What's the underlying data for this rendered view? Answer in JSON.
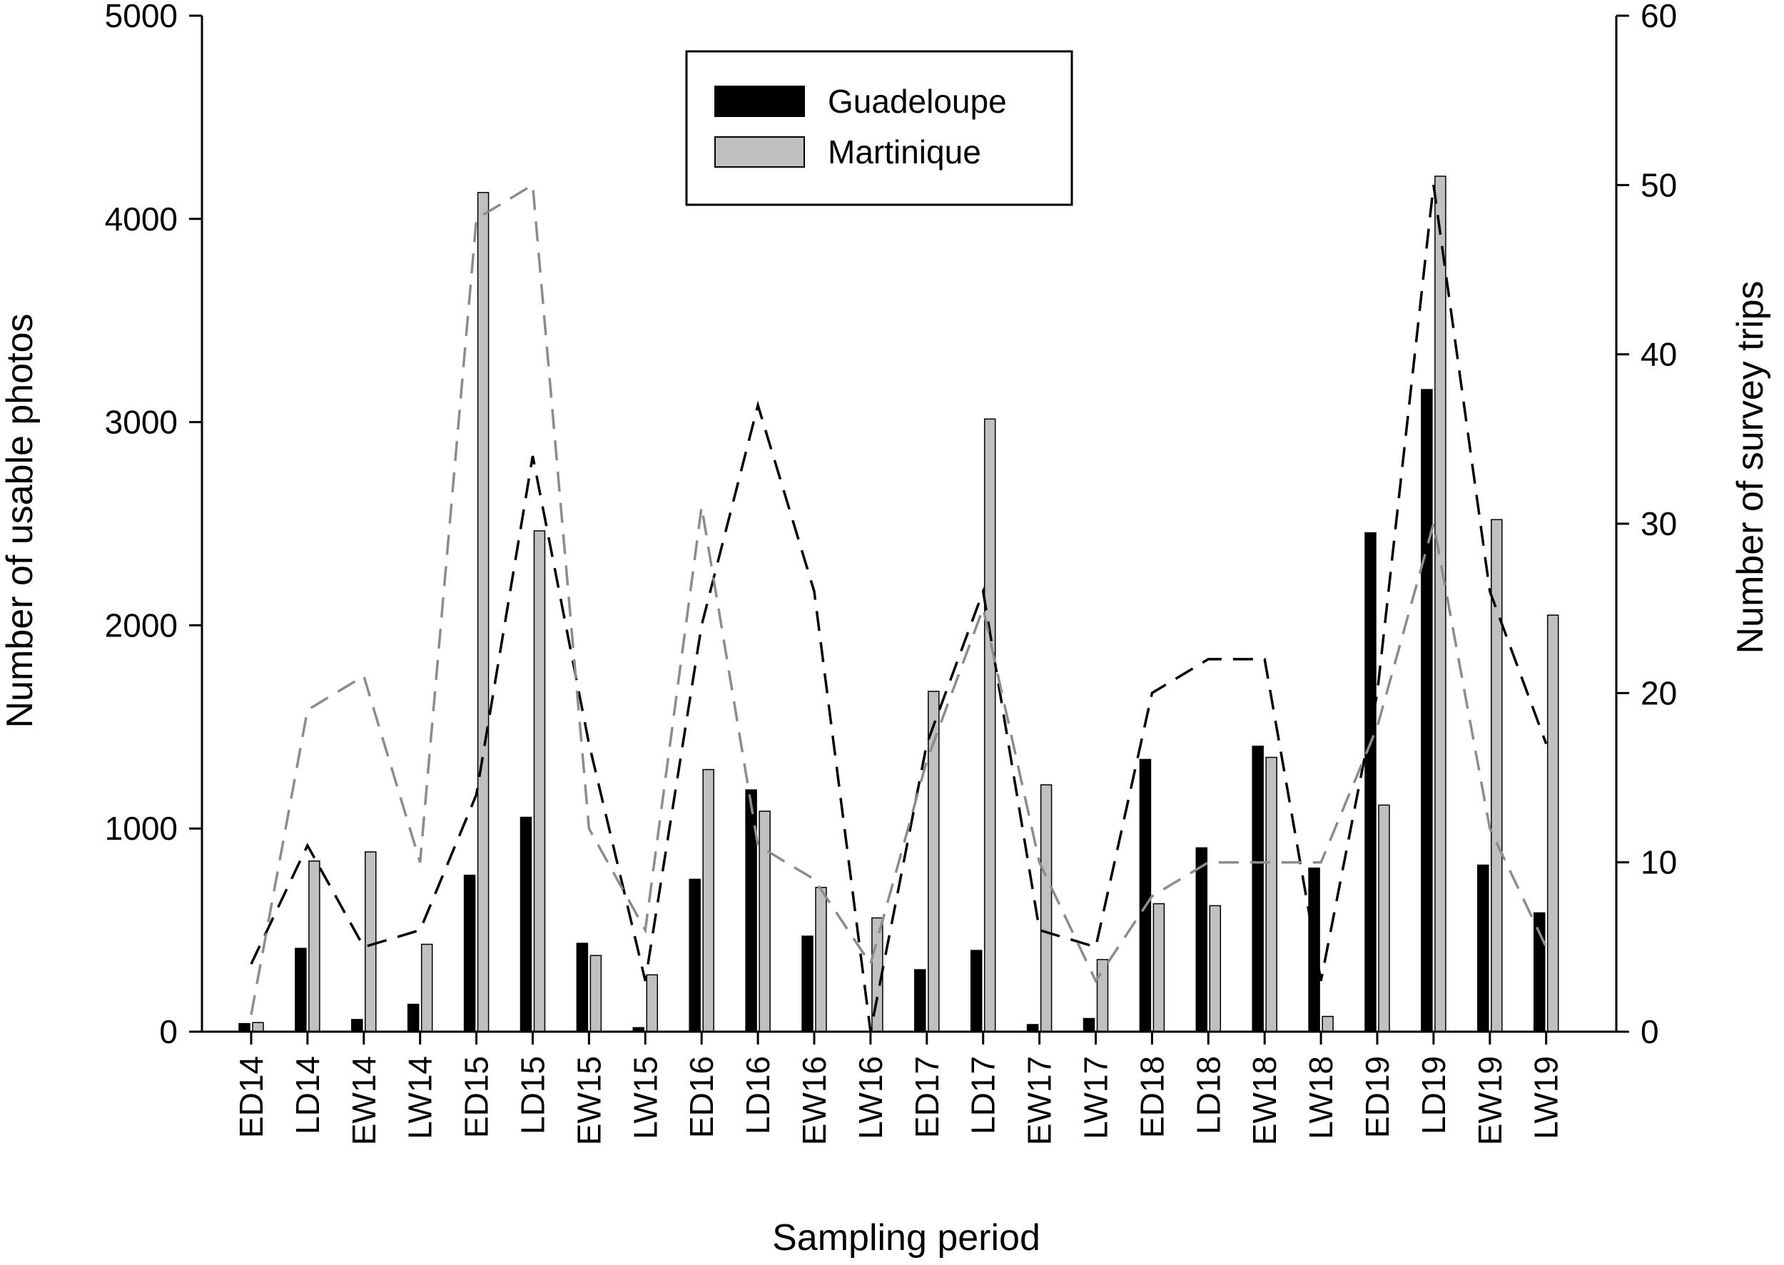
{
  "chart_data": {
    "type": "bar",
    "xlabel": "Sampling period",
    "ylabel": "Number of usable photos",
    "y2label": "Number of survey trips",
    "ylim": [
      0,
      5000
    ],
    "y2lim": [
      0,
      60
    ],
    "yticks": [
      "0",
      "1000",
      "2000",
      "3000",
      "4000",
      "5000"
    ],
    "y2ticks": [
      "0",
      "10",
      "20",
      "30",
      "40",
      "50",
      "60"
    ],
    "categories": [
      "ED14",
      "LD14",
      "EW14",
      "LW14",
      "ED15",
      "LD15",
      "EW15",
      "LW15",
      "ED16",
      "LD16",
      "EW16",
      "LW16",
      "ED17",
      "LD17",
      "EW17",
      "LW17",
      "ED18",
      "LD18",
      "EW18",
      "LW18",
      "ED19",
      "LD19",
      "EW19",
      "LW19"
    ],
    "legend_position": "top-center",
    "series": [
      {
        "name": "Guadeloupe",
        "kind": "bar",
        "axis": "left",
        "color": "#000000",
        "values": [
          40,
          410,
          60,
          135,
          770,
          1055,
          435,
          20,
          750,
          1190,
          470,
          0,
          305,
          400,
          35,
          65,
          1340,
          905,
          1405,
          805,
          2455,
          3160,
          820,
          585
        ]
      },
      {
        "name": "Martinique",
        "kind": "bar",
        "axis": "left",
        "color": "#c0c0c0",
        "values": [
          45,
          840,
          885,
          430,
          4130,
          2465,
          375,
          280,
          1290,
          1085,
          710,
          560,
          1675,
          3015,
          1215,
          355,
          630,
          620,
          1350,
          75,
          1115,
          4210,
          2520,
          2050
        ]
      },
      {
        "kind": "line",
        "axis": "right",
        "color": "#000000",
        "dash": "dashed",
        "values": [
          4,
          11,
          5,
          6,
          14,
          34,
          17,
          3,
          24,
          37,
          26,
          0,
          17,
          26,
          6,
          5,
          20,
          22,
          22,
          3,
          20,
          50,
          26,
          17
        ]
      },
      {
        "kind": "line",
        "axis": "right",
        "color": "#8c8c8c",
        "dash": "dashed",
        "values": [
          1,
          19,
          21,
          10,
          48,
          50,
          12,
          6,
          31,
          11,
          9,
          4,
          16,
          25,
          10,
          3,
          8,
          10,
          10,
          10,
          18,
          30,
          12,
          5
        ]
      }
    ]
  }
}
